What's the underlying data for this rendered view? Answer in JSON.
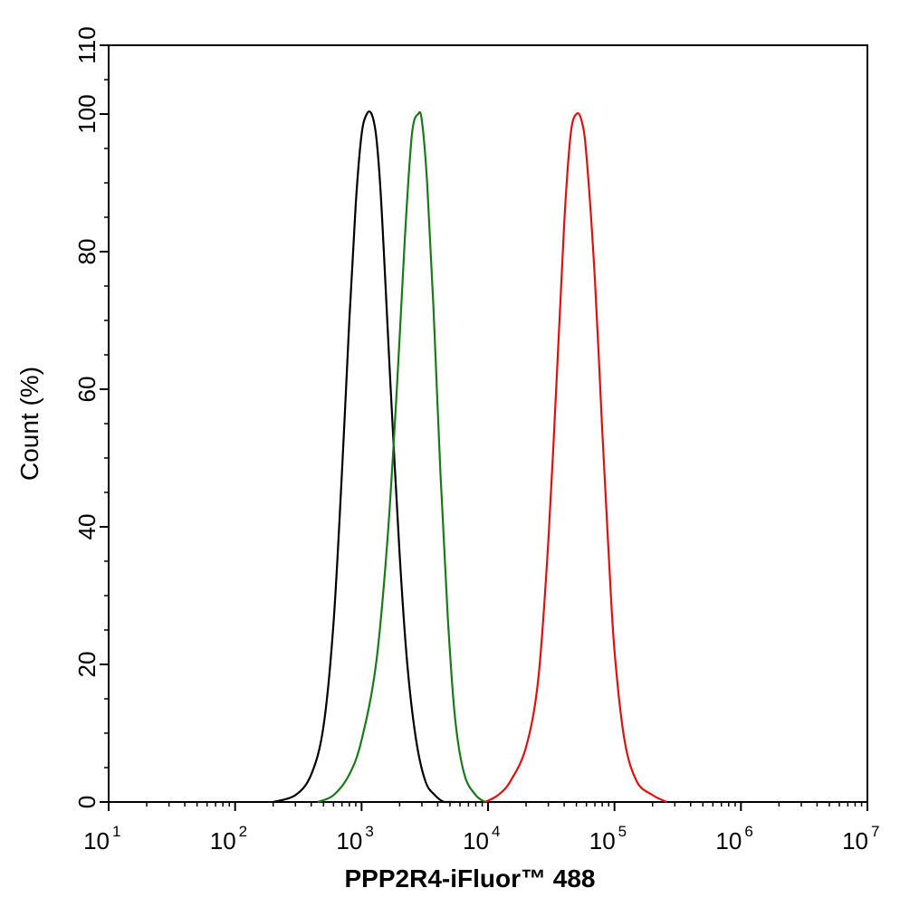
{
  "chart_data": {
    "type": "line",
    "xlabel": "PPP2R4-iFluor™ 488",
    "ylabel": "Count  (%)",
    "x_scale": "log",
    "xlim": [
      10,
      10000000
    ],
    "ylim": [
      0,
      110
    ],
    "y_ticks": [
      "0",
      "20",
      "40",
      "60",
      "80",
      "100",
      "110"
    ],
    "x_ticks": [
      {
        "base": "10",
        "exp": "1"
      },
      {
        "base": "10",
        "exp": "2"
      },
      {
        "base": "10",
        "exp": "3"
      },
      {
        "base": "10",
        "exp": "4"
      },
      {
        "base": "10",
        "exp": "5"
      },
      {
        "base": "10",
        "exp": "6"
      },
      {
        "base": "10",
        "exp": "7"
      }
    ],
    "grid": false,
    "legend": "none",
    "series": [
      {
        "color": "#000000",
        "x": [
          200,
          300,
          400,
          500,
          600,
          700,
          800,
          900,
          1000,
          1100,
          1200,
          1300,
          1400,
          1500,
          1700,
          2000,
          2300,
          2700,
          3200,
          3800,
          4500,
          5500
        ],
        "y": [
          0,
          1,
          4,
          11,
          26,
          48,
          70,
          87,
          97,
          100,
          100,
          97,
          90,
          80,
          60,
          36,
          20,
          9,
          3,
          1,
          0,
          0
        ]
      },
      {
        "color": "#1a7a1a",
        "x": [
          450,
          600,
          800,
          1000,
          1300,
          1600,
          1900,
          2200,
          2500,
          2800,
          3000,
          3300,
          3700,
          4200,
          4800,
          5500,
          6500,
          8000,
          9500
        ],
        "y": [
          0,
          1,
          4,
          9,
          20,
          38,
          60,
          82,
          97,
          100,
          99,
          90,
          72,
          48,
          27,
          12,
          4,
          1,
          0
        ]
      },
      {
        "color": "#e01010",
        "x": [
          9500,
          12000,
          15000,
          20000,
          25000,
          30000,
          35000,
          40000,
          45000,
          50000,
          55000,
          60000,
          70000,
          80000,
          90000,
          100000,
          120000,
          150000,
          200000,
          260000
        ],
        "y": [
          0,
          1,
          3,
          8,
          18,
          38,
          62,
          84,
          97,
          100,
          99,
          94,
          76,
          54,
          36,
          22,
          9,
          3,
          1,
          0
        ]
      }
    ]
  }
}
